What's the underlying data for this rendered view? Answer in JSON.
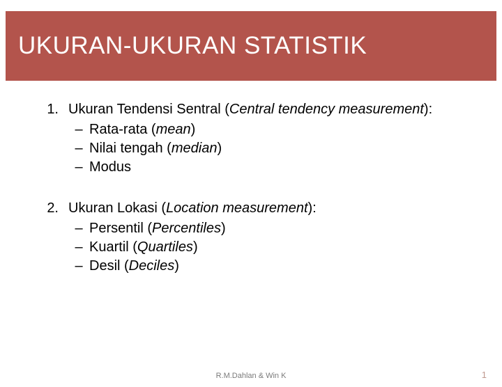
{
  "colors": {
    "title_bg": "#b3544c",
    "title_fg": "#ffffff",
    "body_bg": "#ffffff",
    "text": "#000000",
    "footer_text": "#7a7a7a",
    "page_number": "#c0998f"
  },
  "typography": {
    "title_fontsize": 35,
    "body_fontsize": 20,
    "footer_fontsize": 11,
    "page_fontsize": 13,
    "font_family": "Arial"
  },
  "title": "UKURAN-UKURAN STATISTIK",
  "items": [
    {
      "number": "1.",
      "heading_plain": "Ukuran Tendensi Sentral (",
      "heading_italic": "Central tendency measurement",
      "heading_close": "):",
      "subitems": [
        {
          "dash": "–",
          "plain": "Rata-rata (",
          "italic": "mean",
          "close": ")"
        },
        {
          "dash": "–",
          "plain": "Nilai tengah (",
          "italic": "median",
          "close": ")"
        },
        {
          "dash": "–",
          "plain": "Modus",
          "italic": "",
          "close": ""
        }
      ]
    },
    {
      "number": "2.",
      "heading_plain": "Ukuran Lokasi (",
      "heading_italic": "Location measurement",
      "heading_close": "):",
      "subitems": [
        {
          "dash": "–",
          "plain": "Persentil (",
          "italic": "Percentiles",
          "close": ")"
        },
        {
          "dash": "–",
          "plain": "Kuartil (",
          "italic": "Quartiles",
          "close": ")"
        },
        {
          "dash": "–",
          "plain": "Desil (",
          "italic": "Deciles",
          "close": ")"
        }
      ]
    }
  ],
  "footer": {
    "author": "R.M.Dahlan & Win K",
    "page": "1"
  }
}
